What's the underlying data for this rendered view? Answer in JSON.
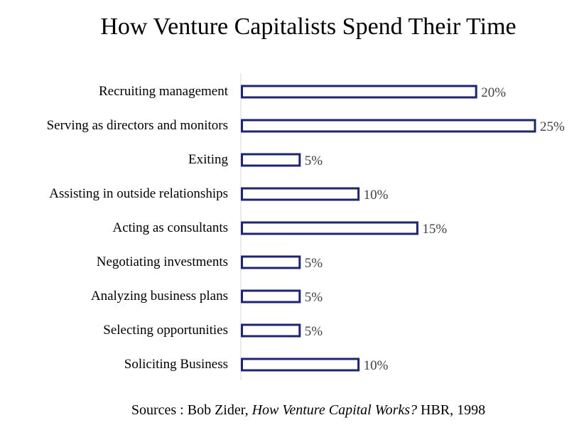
{
  "chart_data": {
    "type": "bar",
    "orientation": "horizontal",
    "title": "How Venture Capitalists Spend Their Time",
    "categories": [
      "Recruiting management",
      "Serving as directors and monitors",
      "Exiting",
      "Assisting in outside relationships",
      "Acting as consultants",
      "Negotiating investments",
      "Analyzing business plans",
      "Selecting opportunities",
      "Soliciting Business"
    ],
    "values": [
      20,
      25,
      5,
      10,
      15,
      5,
      5,
      5,
      10
    ],
    "value_labels": [
      "20%",
      "25%",
      "5%",
      "10%",
      "15%",
      "5%",
      "5%",
      "5%",
      "10%"
    ],
    "unit": "%",
    "xlim": [
      0,
      25
    ],
    "xlabel": "",
    "ylabel": "",
    "grid": false,
    "legend": "none",
    "colors": {
      "bar_outline": "#1f2470",
      "bar_fill": "#ffffff",
      "axis": "#d9d9d9"
    }
  },
  "source": {
    "prefix": "Sources : Bob Zider, ",
    "work": "How Venture Capital Works?",
    "suffix": " HBR, 1998"
  }
}
